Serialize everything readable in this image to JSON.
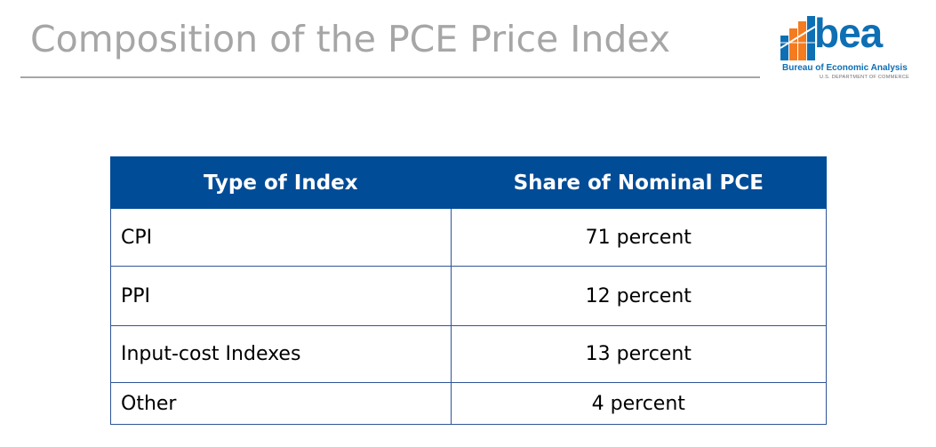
{
  "title": "Composition of the PCE Price Index",
  "logo": {
    "word": "bea",
    "subtitle": "Bureau of Economic Analysis",
    "department": "U.S. DEPARTMENT OF COMMERCE",
    "colors": {
      "blue": "#0e6fb4",
      "orange": "#f47b20"
    }
  },
  "table": {
    "headers": [
      "Type of Index",
      "Share of Nominal PCE"
    ],
    "rows": [
      {
        "type": "CPI",
        "share": "71 percent"
      },
      {
        "type": "PPI",
        "share": "12 percent"
      },
      {
        "type": "Input-cost Indexes",
        "share": "13 percent"
      },
      {
        "type": "Other",
        "share": "4 percent"
      }
    ],
    "header_color": "#004c97"
  }
}
